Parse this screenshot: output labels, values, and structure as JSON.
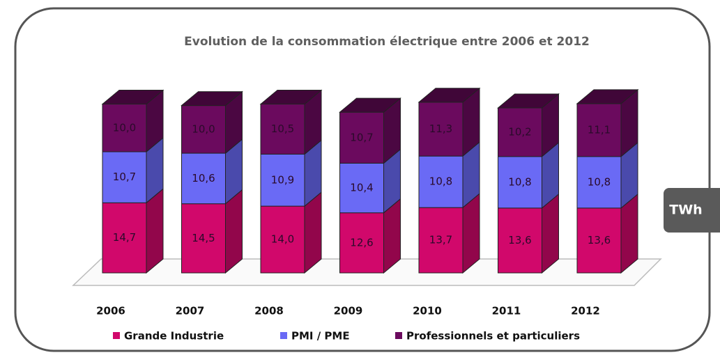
{
  "chart_data": {
    "type": "stacked-bar-3d",
    "title": "Evolution de la consommation électrique entre 2006 et 2012",
    "unit": "TWh",
    "categories": [
      "2006",
      "2007",
      "2008",
      "2009",
      "2010",
      "2011",
      "2012"
    ],
    "series": [
      {
        "name": "Grande Industrie",
        "color": "#d1086b",
        "values": [
          14.7,
          14.5,
          14.0,
          12.6,
          13.7,
          13.6,
          13.6
        ],
        "value_labels": [
          "14,7",
          "14,5",
          "14,0",
          "12,6",
          "13,7",
          "13,6",
          "13,6"
        ]
      },
      {
        "name": "PMI / PME",
        "color": "#6a6af5",
        "values": [
          10.7,
          10.6,
          10.9,
          10.4,
          10.8,
          10.8,
          10.8
        ],
        "value_labels": [
          "10,7",
          "10,6",
          "10,9",
          "10,4",
          "10,8",
          "10,8",
          "10,8"
        ]
      },
      {
        "name": "Professionnels et particuliers",
        "color": "#6b0a5e",
        "values": [
          10.0,
          10.0,
          10.5,
          10.7,
          11.3,
          10.2,
          11.1
        ],
        "value_labels": [
          "10,0",
          "10,0",
          "10,5",
          "10,7",
          "11,3",
          "10,2",
          "11,1"
        ]
      }
    ],
    "legend": "bottom"
  }
}
